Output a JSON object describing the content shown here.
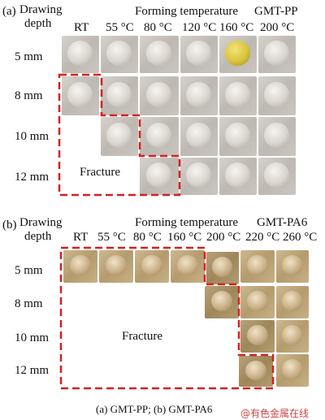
{
  "panel_a": {
    "tag": "(a)",
    "drawing_depth_line1": "Drawing",
    "drawing_depth_line2": "depth",
    "forming_temperature": "Forming temperature",
    "material": "GMT-PP",
    "temperatures": [
      "RT",
      "55 °C",
      "80 °C",
      "120 °C",
      "160 °C",
      "200 °C"
    ],
    "depths": [
      "5 mm",
      "8 mm",
      "10 mm",
      "12 mm"
    ],
    "fracture_label": "Fracture"
  },
  "panel_b": {
    "tag": "(b)",
    "drawing_depth_line1": "Drawing",
    "drawing_depth_line2": "depth",
    "forming_temperature": "Forming temperature",
    "material": "GMT-PA6",
    "temperatures": [
      "RT",
      "55 °C",
      "80 °C",
      "160 °C",
      "200 °C",
      "220 °C",
      "260 °C"
    ],
    "depths": [
      "5 mm",
      "8 mm",
      "10 mm",
      "12 mm"
    ],
    "fracture_label": "Fracture"
  },
  "caption": "(a) GMT-PP; (b) GMT-PA6",
  "watermark": "@有色金属在线",
  "colors": {
    "fracture_outline": "#d42020"
  }
}
